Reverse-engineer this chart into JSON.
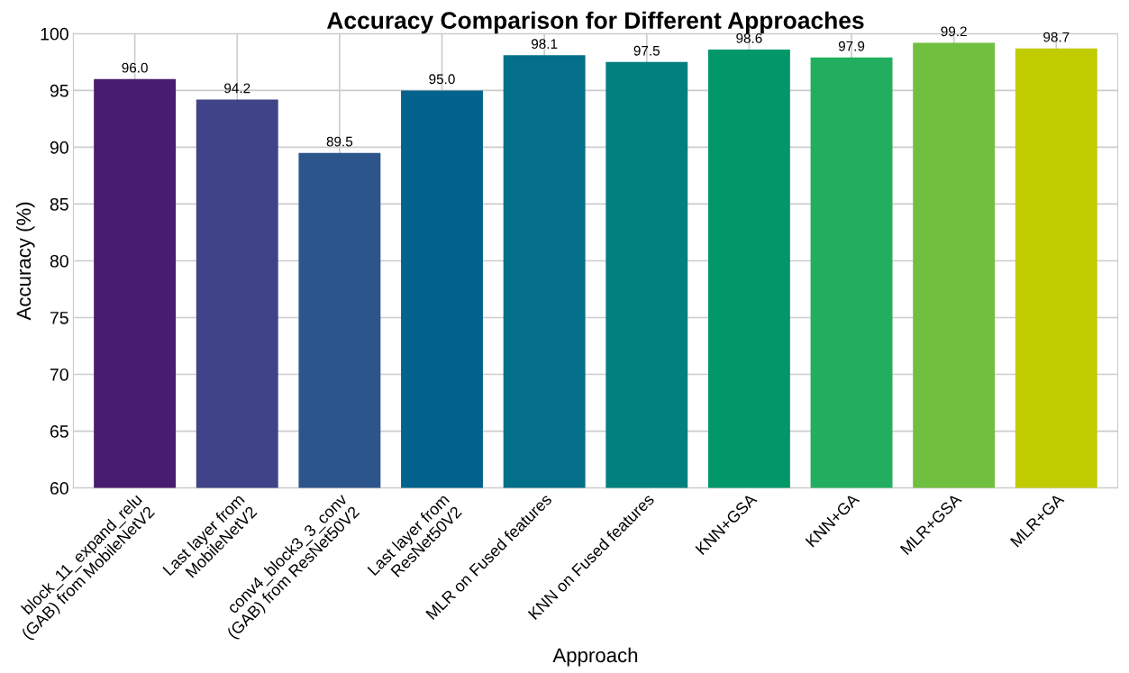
{
  "chart_data": {
    "type": "bar",
    "title": "Accuracy Comparison for Different Approaches",
    "xlabel": "Approach",
    "ylabel": "Accuracy (%)",
    "categories": [
      "block_11_expand_relu\n(GAB) from MobileNetV2",
      "Last layer from\nMobileNetV2",
      "conv4_block3_3_conv\n(GAB) from ResNet50V2",
      "Last layer from\nResNet50V2",
      "MLR on Fused features",
      "KNN on Fused features",
      "KNN+GSA",
      "KNN+GA",
      "MLR+GSA",
      "MLR+GA"
    ],
    "values": [
      96.0,
      94.2,
      89.5,
      95.0,
      98.1,
      97.5,
      98.6,
      97.9,
      99.2,
      98.7
    ],
    "value_labels": [
      "96.0",
      "94.2",
      "89.5",
      "95.0",
      "98.1",
      "97.5",
      "98.6",
      "97.9",
      "99.2",
      "98.7"
    ],
    "colors": [
      "#481c6e",
      "#404387",
      "#2c558c",
      "#03638c",
      "#036f89",
      "#028080",
      "#019769",
      "#22ae5e",
      "#71bf3f",
      "#c1cc00"
    ],
    "ylim": [
      60,
      100
    ],
    "yticks": [
      60,
      65,
      70,
      75,
      80,
      85,
      90,
      95,
      100
    ],
    "grid": true
  }
}
